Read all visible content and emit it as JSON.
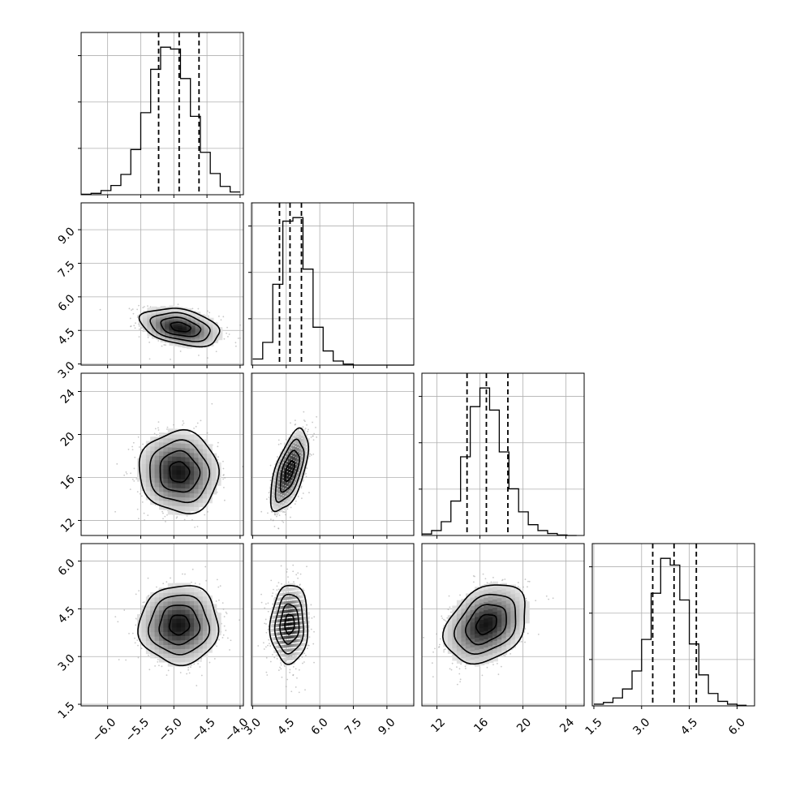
{
  "chart_data": {
    "type": "corner",
    "title": "",
    "variables": [
      {
        "label": "",
        "range": [
          -6.4,
          -3.95
        ],
        "ticks": [
          -6.0,
          -5.5,
          -5.0,
          -4.5,
          -4.0
        ],
        "tick_labels": [
          "−6.0",
          "−5.5",
          "−5.0",
          "−4.5",
          "−4.0"
        ],
        "quantiles": [
          -5.23,
          -4.92,
          -4.62
        ]
      },
      {
        "label": "",
        "range": [
          2.95,
          10.2
        ],
        "ticks": [
          3.0,
          4.5,
          6.0,
          7.5,
          9.0
        ],
        "tick_labels": [
          "3.0",
          "4.5",
          "6.0",
          "7.5",
          "9.0"
        ],
        "quantiles": [
          4.2,
          4.67,
          5.18
        ]
      },
      {
        "label": "",
        "range": [
          10.6,
          25.7
        ],
        "ticks": [
          12,
          16,
          20,
          24
        ],
        "tick_labels": [
          "12",
          "16",
          "20",
          "24"
        ],
        "quantiles": [
          14.8,
          16.6,
          18.6
        ]
      },
      {
        "label": "",
        "range": [
          1.45,
          6.55
        ],
        "ticks": [
          1.5,
          3.0,
          4.5,
          6.0
        ],
        "tick_labels": [
          "1.5",
          "3.0",
          "4.5",
          "6.0"
        ],
        "quantiles": [
          3.35,
          4.02,
          4.72
        ]
      }
    ],
    "histograms": [
      {
        "edges": [
          -6.4,
          -6.25,
          -6.1,
          -5.95,
          -5.8,
          -5.65,
          -5.5,
          -5.35,
          -5.2,
          -5.05,
          -4.9,
          -4.75,
          -4.6,
          -4.45,
          -4.3,
          -4.15,
          -4.0
        ],
        "counts": [
          1,
          3,
          9,
          20,
          44,
          98,
          178,
          272,
          320,
          316,
          252,
          170,
          92,
          46,
          18,
          6
        ]
      },
      {
        "edges": [
          3.0,
          3.45,
          3.9,
          4.35,
          4.8,
          5.25,
          5.7,
          6.15,
          6.6,
          7.05,
          7.5,
          7.95,
          8.4,
          8.85,
          9.3,
          9.75,
          10.2
        ],
        "counts": [
          12,
          45,
          160,
          285,
          292,
          190,
          75,
          28,
          8,
          2,
          0,
          0,
          0,
          0,
          0,
          0
        ]
      },
      {
        "edges": [
          10.6,
          11.5,
          12.4,
          13.3,
          14.2,
          15.1,
          16.0,
          16.9,
          17.8,
          18.7,
          19.6,
          20.5,
          21.4,
          22.3,
          23.2,
          24.1,
          25.0
        ],
        "counts": [
          3,
          10,
          28,
          70,
          160,
          262,
          300,
          255,
          170,
          95,
          48,
          22,
          10,
          4,
          1,
          0
        ]
      },
      {
        "edges": [
          1.5,
          1.8,
          2.1,
          2.4,
          2.7,
          3.0,
          3.3,
          3.6,
          3.9,
          4.2,
          4.5,
          4.8,
          5.1,
          5.4,
          5.7,
          6.0,
          6.3
        ],
        "counts": [
          3,
          6,
          14,
          30,
          62,
          118,
          200,
          262,
          250,
          188,
          110,
          55,
          22,
          8,
          3,
          1
        ]
      }
    ],
    "pairs": [
      {
        "row": 1,
        "col": 0,
        "mean": [
          -4.9,
          4.65
        ],
        "sd": [
          0.3,
          0.42
        ],
        "rho": -0.35
      },
      {
        "row": 2,
        "col": 0,
        "mean": [
          -4.92,
          16.5
        ],
        "sd": [
          0.3,
          1.9
        ],
        "rho": -0.05
      },
      {
        "row": 2,
        "col": 1,
        "mean": [
          4.65,
          16.6
        ],
        "sd": [
          0.42,
          1.9
        ],
        "rho": 0.6
      },
      {
        "row": 3,
        "col": 0,
        "mean": [
          -4.92,
          4.0
        ],
        "sd": [
          0.3,
          0.62
        ],
        "rho": 0.02
      },
      {
        "row": 3,
        "col": 1,
        "mean": [
          4.65,
          4.02
        ],
        "sd": [
          0.42,
          0.62
        ],
        "rho": 0.05
      },
      {
        "row": 3,
        "col": 2,
        "mean": [
          16.6,
          4.02
        ],
        "sd": [
          1.9,
          0.62
        ],
        "rho": 0.3
      }
    ],
    "contour_levels_sigma": [
      0.5,
      1.0,
      1.5,
      2.0
    ],
    "grid": true,
    "colors": {
      "line": "#000000",
      "grid": "#b0b0b0",
      "points": "#9a9a9a"
    }
  }
}
